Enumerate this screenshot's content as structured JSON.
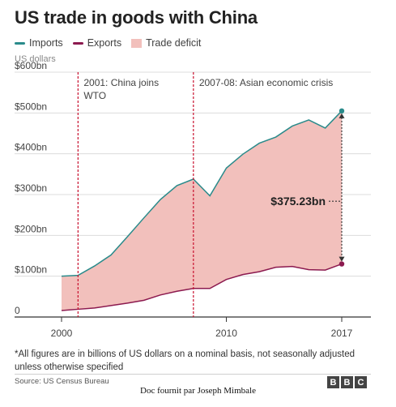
{
  "header": {
    "title": "US trade in goods with China",
    "units_label": "US dollars"
  },
  "legend": [
    {
      "label": "Imports",
      "color": "#2a8b8b"
    },
    {
      "label": "Exports",
      "color": "#8c1a4f"
    },
    {
      "label": "Trade deficit",
      "color": "#f2c0bc"
    }
  ],
  "chart_data": {
    "type": "area",
    "title": "US trade in goods with China",
    "ylabel": "US dollars",
    "xlabel": "",
    "x_ticks": [
      "2000",
      "2010",
      "2017"
    ],
    "y_ticks": [
      "0",
      "$100bn",
      "$200bn",
      "$300bn",
      "$400bn",
      "$500bn",
      "$600bn"
    ],
    "x": [
      2000,
      2001,
      2002,
      2003,
      2004,
      2005,
      2006,
      2007,
      2008,
      2009,
      2010,
      2011,
      2012,
      2013,
      2014,
      2015,
      2016,
      2017
    ],
    "xlim": [
      2000,
      2017
    ],
    "ylim": [
      0,
      600
    ],
    "grid": true,
    "legend_position": "top-left",
    "series": [
      {
        "name": "Imports",
        "color": "#2a8b8b",
        "values": [
          100,
          102,
          125,
          152,
          197,
          243,
          288,
          322,
          338,
          297,
          365,
          399,
          426,
          441,
          468,
          483,
          463,
          505
        ]
      },
      {
        "name": "Exports",
        "color": "#8c1a4f",
        "values": [
          16,
          19,
          22,
          28,
          34,
          41,
          54,
          63,
          70,
          70,
          92,
          104,
          111,
          122,
          124,
          116,
          115,
          130
        ]
      },
      {
        "name": "Trade deficit",
        "color": "#f2c0bc",
        "area_between": [
          "Imports",
          "Exports"
        ]
      }
    ],
    "annotations": [
      {
        "x": 2001,
        "text_lines": [
          "2001: China joins",
          "WTO"
        ],
        "type": "vline",
        "color": "#c8102e"
      },
      {
        "x": 2008,
        "text_lines": [
          "2007-08: Asian economic crisis"
        ],
        "type": "vline",
        "color": "#c8102e"
      },
      {
        "x": 2017,
        "text": "$375.23bn",
        "type": "range",
        "from": 130,
        "to": 505
      }
    ]
  },
  "footnote": "*All figures are in billions of US dollars on a nominal basis, not seasonally adjusted unless otherwise specified",
  "source": "Source: US Census Bureau",
  "logo_letters": [
    "B",
    "B",
    "C"
  ],
  "credit": "Doc fournit par Joseph Mimbale"
}
